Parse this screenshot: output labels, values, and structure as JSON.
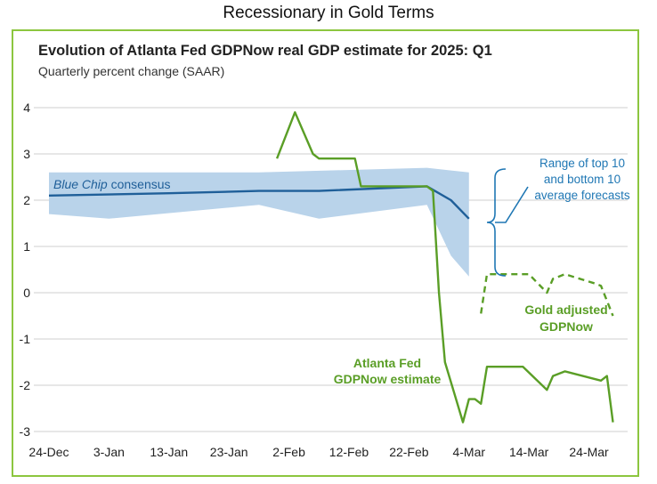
{
  "header": {
    "title": "Recessionary in Gold Terms"
  },
  "chart_data": {
    "type": "line",
    "title": "Evolution of Atlanta Fed GDPNow real GDP estimate for 2025: Q1",
    "subtitle": "Quarterly percent change (SAAR)",
    "xlabel": "",
    "ylabel": "",
    "ylim": [
      -3,
      4
    ],
    "yticks": [
      4,
      3,
      2,
      1,
      0,
      -1,
      -2,
      -3
    ],
    "ytick_labels": [
      "4",
      "3",
      "2",
      "1",
      "0",
      "-1",
      "-2",
      "-3"
    ],
    "xlim": [
      "2024-12-24",
      "2025-03-30"
    ],
    "xticks": [
      "2024-12-24",
      "2025-01-03",
      "2025-01-13",
      "2025-01-23",
      "2025-02-02",
      "2025-02-12",
      "2025-02-22",
      "2025-03-04",
      "2025-03-14",
      "2025-03-24"
    ],
    "xtick_labels": [
      "24-Dec",
      "3-Jan",
      "13-Jan",
      "23-Jan",
      "2-Feb",
      "12-Feb",
      "22-Feb",
      "4-Mar",
      "14-Mar",
      "24-Mar"
    ],
    "grid": true,
    "series": [
      {
        "name": "Blue Chip consensus",
        "style": "line",
        "color": "#1f5f99",
        "points": [
          [
            "2024-12-24",
            2.1
          ],
          [
            "2025-01-13",
            2.15
          ],
          [
            "2025-01-28",
            2.2
          ],
          [
            "2025-02-07",
            2.2
          ],
          [
            "2025-02-25",
            2.3
          ],
          [
            "2025-03-01",
            2.0
          ],
          [
            "2025-03-04",
            1.6
          ]
        ]
      },
      {
        "name": "Range of top 10 and bottom 10 average forecasts",
        "style": "band",
        "color": "#b9d3ea",
        "upper": [
          [
            "2024-12-24",
            2.6
          ],
          [
            "2025-01-28",
            2.6
          ],
          [
            "2025-02-25",
            2.7
          ],
          [
            "2025-03-04",
            2.6
          ]
        ],
        "lower": [
          [
            "2024-12-24",
            1.7
          ],
          [
            "2025-01-03",
            1.6
          ],
          [
            "2025-01-28",
            1.9
          ],
          [
            "2025-02-07",
            1.6
          ],
          [
            "2025-02-25",
            1.9
          ],
          [
            "2025-03-01",
            0.8
          ],
          [
            "2025-03-04",
            0.35
          ]
        ]
      },
      {
        "name": "Atlanta Fed GDPNow estimate",
        "style": "line",
        "color": "#5a9e26",
        "points": [
          [
            "2025-01-31",
            2.9
          ],
          [
            "2025-02-03",
            3.9
          ],
          [
            "2025-02-06",
            3.0
          ],
          [
            "2025-02-07",
            2.9
          ],
          [
            "2025-02-13",
            2.9
          ],
          [
            "2025-02-14",
            2.3
          ],
          [
            "2025-02-25",
            2.3
          ],
          [
            "2025-02-26",
            2.2
          ],
          [
            "2025-02-27",
            0.0
          ],
          [
            "2025-02-28",
            -1.5
          ],
          [
            "2025-03-03",
            -2.8
          ],
          [
            "2025-03-04",
            -2.3
          ],
          [
            "2025-03-05",
            -2.3
          ],
          [
            "2025-03-06",
            -2.4
          ],
          [
            "2025-03-07",
            -1.6
          ],
          [
            "2025-03-13",
            -1.6
          ],
          [
            "2025-03-17",
            -2.1
          ],
          [
            "2025-03-18",
            -1.8
          ],
          [
            "2025-03-20",
            -1.7
          ],
          [
            "2025-03-26",
            -1.9
          ],
          [
            "2025-03-27",
            -1.8
          ],
          [
            "2025-03-28",
            -2.8
          ]
        ]
      },
      {
        "name": "Gold adjusted GDPNow",
        "style": "dashed",
        "color": "#5a9e26",
        "points": [
          [
            "2025-03-06",
            -0.45
          ],
          [
            "2025-03-07",
            0.4
          ],
          [
            "2025-03-14",
            0.4
          ],
          [
            "2025-03-17",
            0.0
          ],
          [
            "2025-03-18",
            0.3
          ],
          [
            "2025-03-20",
            0.4
          ],
          [
            "2025-03-25",
            0.2
          ],
          [
            "2025-03-26",
            0.15
          ],
          [
            "2025-03-28",
            -0.5
          ]
        ]
      }
    ],
    "annotations": [
      {
        "text": "Blue Chip consensus"
      },
      {
        "text": "Range of top 10"
      },
      {
        "text": "and bottom 10"
      },
      {
        "text": "average forecasts"
      },
      {
        "text": "Gold adjusted"
      },
      {
        "text": "GDPNow"
      },
      {
        "text": "Atlanta Fed"
      },
      {
        "text": "GDPNow estimate"
      }
    ]
  }
}
